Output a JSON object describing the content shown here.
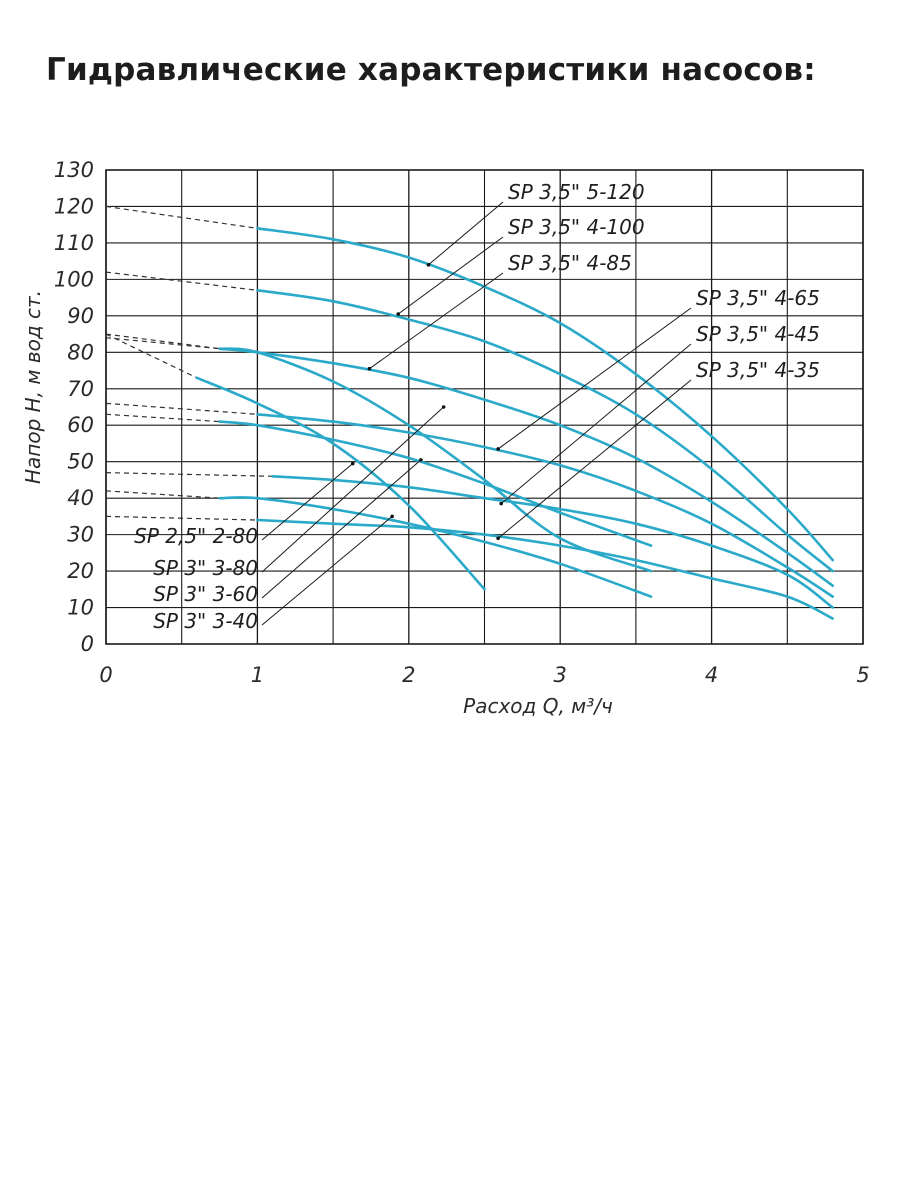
{
  "page": {
    "title": "Гидравлические характеристики насосов:"
  },
  "colors": {
    "curve": "#2aa9c9",
    "grid": "#1a1a1a",
    "dash": "#333333",
    "leader": "#1a1a1a"
  },
  "chart_data": {
    "type": "line",
    "title": "",
    "xlabel": "Расход Q, м³/ч",
    "ylabel": "Напор H, м вод ст.",
    "xlim": [
      0,
      5
    ],
    "ylim": [
      0,
      130
    ],
    "x_ticks": [
      0,
      1,
      2,
      3,
      4,
      5
    ],
    "y_ticks": [
      0,
      10,
      20,
      30,
      40,
      50,
      60,
      70,
      80,
      90,
      100,
      110,
      120,
      130
    ],
    "x_tick_labels": [
      "0",
      "1",
      "2",
      "3",
      "4",
      "5"
    ],
    "y_tick_labels": [
      "0",
      "10",
      "20",
      "30",
      "40",
      "50",
      "60",
      "70",
      "80",
      "90",
      "100",
      "110",
      "120",
      "130"
    ],
    "grid": true,
    "series": [
      {
        "name": "SP 3,5\" 5-120",
        "shutoff_head": 120,
        "x": [
          1.0,
          1.5,
          2.0,
          2.5,
          3.0,
          3.5,
          4.0,
          4.5,
          4.8
        ],
        "y": [
          114,
          111,
          106,
          98,
          88,
          74,
          57,
          37,
          23
        ]
      },
      {
        "name": "SP 3,5\" 4-100",
        "shutoff_head": 102,
        "x": [
          1.0,
          1.5,
          2.0,
          2.5,
          3.0,
          3.5,
          4.0,
          4.5,
          4.8
        ],
        "y": [
          97,
          94,
          89,
          83,
          74,
          63,
          48,
          30,
          20
        ]
      },
      {
        "name": "SP 3,5\" 4-85",
        "shutoff_head": 85,
        "x": [
          0.75,
          1.0,
          1.5,
          2.0,
          2.5,
          3.0,
          3.5,
          4.0,
          4.5,
          4.8
        ],
        "y": [
          81,
          80,
          77,
          73,
          67,
          60,
          51,
          39,
          25,
          16
        ]
      },
      {
        "name": "SP 3,5\" 4-65",
        "shutoff_head": 66,
        "x": [
          1.0,
          1.5,
          2.0,
          2.5,
          3.0,
          3.5,
          4.0,
          4.5,
          4.8
        ],
        "y": [
          63,
          61,
          58,
          54,
          49,
          42,
          33,
          21,
          13
        ]
      },
      {
        "name": "SP 3,5\" 4-45",
        "shutoff_head": 47,
        "x": [
          1.1,
          1.5,
          2.0,
          2.5,
          3.0,
          3.5,
          4.0,
          4.5,
          4.8
        ],
        "y": [
          46,
          45,
          43,
          40,
          37,
          33,
          27,
          19,
          10
        ]
      },
      {
        "name": "SP 3,5\" 4-35",
        "shutoff_head": 35,
        "x": [
          1.0,
          1.5,
          2.0,
          2.5,
          3.0,
          3.5,
          4.0,
          4.5,
          4.8
        ],
        "y": [
          34,
          33,
          32,
          30,
          27,
          23,
          18,
          13,
          7
        ]
      },
      {
        "name": "SP 2,5\" 2-80",
        "shutoff_head": 85,
        "x": [
          0.6,
          1.0,
          1.5,
          2.0,
          2.5
        ],
        "y": [
          73,
          66,
          55,
          38,
          15
        ]
      },
      {
        "name": "SP 3\" 3-80",
        "shutoff_head": 84,
        "x": [
          0.75,
          1.0,
          1.5,
          2.0,
          2.5,
          3.0,
          3.6
        ],
        "y": [
          81,
          80,
          72,
          60,
          45,
          29,
          20
        ]
      },
      {
        "name": "SP 3\" 3-60",
        "shutoff_head": 63,
        "x": [
          0.75,
          1.0,
          1.5,
          2.0,
          2.5,
          3.0,
          3.6
        ],
        "y": [
          61,
          60,
          56,
          51,
          44,
          36,
          27
        ]
      },
      {
        "name": "SP 3\" 3-40",
        "shutoff_head": 42,
        "x": [
          0.75,
          1.0,
          1.5,
          2.0,
          2.5,
          3.0,
          3.6
        ],
        "y": [
          40,
          40,
          37,
          33,
          28,
          22,
          13
        ]
      }
    ],
    "labels": [
      {
        "text": "SP 3,5\" 5-120",
        "points_to": [
          2.13,
          104
        ]
      },
      {
        "text": "SP 3,5\" 4-100",
        "points_to": [
          1.93,
          90.5
        ]
      },
      {
        "text": "SP 3,5\" 4-85",
        "points_to": [
          1.74,
          75.5
        ]
      },
      {
        "text": "SP 3,5\" 4-65",
        "points_to": [
          2.59,
          53.5
        ]
      },
      {
        "text": "SP 3,5\" 4-45",
        "points_to": [
          2.61,
          38.5
        ]
      },
      {
        "text": "SP 3,5\" 4-35",
        "points_to": [
          2.59,
          29
        ]
      },
      {
        "text": "SP 2,5\" 2-80",
        "points_to": [
          1.63,
          49.5
        ]
      },
      {
        "text": "SP 3\" 3-80",
        "points_to": [
          2.23,
          65
        ]
      },
      {
        "text": "SP 3\" 3-60",
        "points_to": [
          2.08,
          50.5
        ]
      },
      {
        "text": "SP 3\" 3-40",
        "points_to": [
          1.89,
          35
        ]
      }
    ]
  }
}
